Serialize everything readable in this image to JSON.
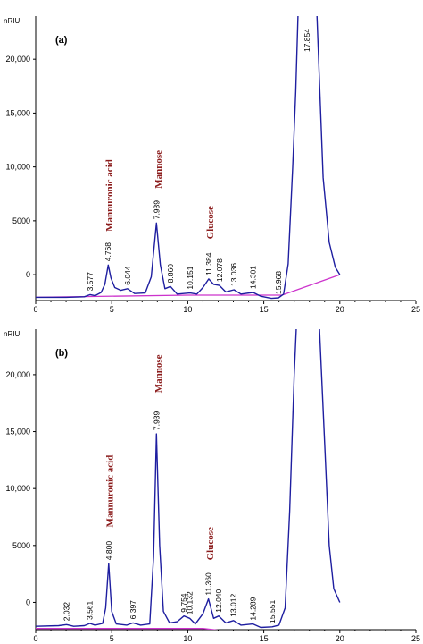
{
  "colors": {
    "signal": "#1e1ea0",
    "baseline": "#cc33cc",
    "compound": "#8b1c1c",
    "axis": "#000000"
  },
  "chart_data": [
    {
      "type": "line",
      "panel_label": "(a)",
      "ylabel": "nRIU",
      "xlim": [
        0,
        25
      ],
      "ylim": [
        -2400,
        24000
      ],
      "x_ticks": [
        "0",
        "5",
        "10",
        "15",
        "20",
        "25"
      ],
      "y_ticks": [
        {
          "value": 0,
          "label": "0"
        },
        {
          "value": 5000,
          "label": "5000"
        },
        {
          "value": 10000,
          "label": "10,000"
        },
        {
          "value": 15000,
          "label": "15,000"
        },
        {
          "value": 20000,
          "label": "20,000"
        }
      ],
      "series": [
        {
          "values": [
            [
              0,
              -2100
            ],
            [
              2,
              -2100
            ],
            [
              3.2,
              -2050
            ],
            [
              3.58,
              -1850
            ],
            [
              3.9,
              -1950
            ],
            [
              4.3,
              -1650
            ],
            [
              4.55,
              -900
            ],
            [
              4.77,
              900
            ],
            [
              4.95,
              -300
            ],
            [
              5.2,
              -1200
            ],
            [
              5.6,
              -1450
            ],
            [
              6.04,
              -1300
            ],
            [
              6.5,
              -1750
            ],
            [
              7.2,
              -1700
            ],
            [
              7.6,
              -200
            ],
            [
              7.94,
              4800
            ],
            [
              8.2,
              900
            ],
            [
              8.5,
              -1300
            ],
            [
              8.86,
              -1100
            ],
            [
              9.3,
              -1800
            ],
            [
              10.15,
              -1700
            ],
            [
              10.6,
              -1800
            ],
            [
              11.0,
              -1200
            ],
            [
              11.38,
              -400
            ],
            [
              11.7,
              -900
            ],
            [
              12.08,
              -1000
            ],
            [
              12.5,
              -1600
            ],
            [
              13.04,
              -1400
            ],
            [
              13.5,
              -1800
            ],
            [
              14.3,
              -1650
            ],
            [
              14.8,
              -2000
            ],
            [
              15.5,
              -2200
            ],
            [
              15.97,
              -2150
            ],
            [
              16.3,
              -1800
            ],
            [
              16.6,
              1000
            ],
            [
              16.9,
              10000
            ],
            [
              17.1,
              17000
            ],
            [
              17.25,
              24000
            ],
            [
              17.85,
              26000
            ],
            [
              18.5,
              24000
            ],
            [
              18.9,
              9000
            ],
            [
              19.3,
              3000
            ],
            [
              19.7,
              700
            ],
            [
              20,
              0
            ]
          ]
        }
      ],
      "baseline": [
        [
          0,
          -2100
        ],
        [
          10,
          -1900
        ],
        [
          16.2,
          -1900
        ],
        [
          20,
          0
        ]
      ],
      "peak_labels": [
        {
          "x": 3.577,
          "y": -1850,
          "label": "3.577"
        },
        {
          "x": 4.768,
          "y": 900,
          "label": "4.768"
        },
        {
          "x": 6.044,
          "y": -1300,
          "label": "6.044"
        },
        {
          "x": 7.939,
          "y": 4800,
          "label": "7.939"
        },
        {
          "x": 8.86,
          "y": -1100,
          "label": "8.860"
        },
        {
          "x": 10.151,
          "y": -1700,
          "label": "10.151"
        },
        {
          "x": 11.384,
          "y": -400,
          "label": "11.384"
        },
        {
          "x": 12.078,
          "y": -1000,
          "label": "12.078"
        },
        {
          "x": 13.036,
          "y": -1400,
          "label": "13.036"
        },
        {
          "x": 14.301,
          "y": -1650,
          "label": "14.301"
        },
        {
          "x": 15.968,
          "y": -2150,
          "label": "15.968"
        },
        {
          "x": 17.854,
          "y": 24000,
          "label": "17.854"
        }
      ],
      "compound_labels": [
        {
          "x": 4.8,
          "y": 4000,
          "label": "Mannuronic acid"
        },
        {
          "x": 8.05,
          "y": 8000,
          "label": "Mannose"
        },
        {
          "x": 11.45,
          "y": 3300,
          "label": "Glucose"
        }
      ]
    },
    {
      "type": "line",
      "panel_label": "(b)",
      "ylabel": "nRIU",
      "xlim": [
        0,
        25
      ],
      "ylim": [
        -2400,
        24000
      ],
      "x_ticks": [
        "0",
        "5",
        "10",
        "15",
        "20",
        "25"
      ],
      "y_ticks": [
        {
          "value": 0,
          "label": "0"
        },
        {
          "value": 5000,
          "label": "5000"
        },
        {
          "value": 10000,
          "label": "10,000"
        },
        {
          "value": 15000,
          "label": "15,000"
        },
        {
          "value": 20000,
          "label": "20,000"
        }
      ],
      "series": [
        {
          "values": [
            [
              0,
              -2100
            ],
            [
              1.5,
              -2050
            ],
            [
              2.03,
              -1950
            ],
            [
              2.5,
              -2100
            ],
            [
              3.2,
              -2050
            ],
            [
              3.56,
              -1850
            ],
            [
              3.9,
              -2000
            ],
            [
              4.4,
              -1850
            ],
            [
              4.6,
              -500
            ],
            [
              4.8,
              3400
            ],
            [
              5.0,
              -800
            ],
            [
              5.3,
              -1900
            ],
            [
              6.0,
              -2000
            ],
            [
              6.4,
              -1800
            ],
            [
              6.9,
              -2000
            ],
            [
              7.5,
              -1900
            ],
            [
              7.75,
              4000
            ],
            [
              7.94,
              14800
            ],
            [
              8.15,
              5000
            ],
            [
              8.4,
              -800
            ],
            [
              8.8,
              -1800
            ],
            [
              9.3,
              -1700
            ],
            [
              9.75,
              -1200
            ],
            [
              10.13,
              -1400
            ],
            [
              10.5,
              -1900
            ],
            [
              11.0,
              -1000
            ],
            [
              11.36,
              300
            ],
            [
              11.7,
              -1400
            ],
            [
              12.04,
              -1200
            ],
            [
              12.5,
              -1800
            ],
            [
              13.01,
              -1600
            ],
            [
              13.5,
              -2000
            ],
            [
              14.29,
              -1900
            ],
            [
              14.8,
              -2200
            ],
            [
              15.55,
              -2150
            ],
            [
              16.0,
              -2000
            ],
            [
              16.4,
              -500
            ],
            [
              16.7,
              8000
            ],
            [
              17.0,
              20000
            ],
            [
              17.2,
              26000
            ],
            [
              18.0,
              27000
            ],
            [
              18.6,
              26000
            ],
            [
              19.0,
              14000
            ],
            [
              19.3,
              5000
            ],
            [
              19.6,
              1200
            ],
            [
              20,
              0
            ]
          ]
        }
      ],
      "baseline": [
        [
          0,
          -2300
        ],
        [
          5,
          -2300
        ],
        [
          11,
          -2300
        ],
        [
          13,
          -2600
        ],
        [
          16,
          -2700
        ]
      ],
      "peak_labels": [
        {
          "x": 2.032,
          "y": -1950,
          "label": "2.032"
        },
        {
          "x": 3.561,
          "y": -1850,
          "label": "3.561"
        },
        {
          "x": 4.8,
          "y": 3400,
          "label": "4.800"
        },
        {
          "x": 6.397,
          "y": -1800,
          "label": "6.397"
        },
        {
          "x": 7.939,
          "y": 14800,
          "label": "7.939"
        },
        {
          "x": 9.754,
          "y": -1200,
          "label": "9.754"
        },
        {
          "x": 10.132,
          "y": -1400,
          "label": "10.132"
        },
        {
          "x": 11.36,
          "y": 300,
          "label": "11.360"
        },
        {
          "x": 12.04,
          "y": -1200,
          "label": "12.040"
        },
        {
          "x": 13.012,
          "y": -1600,
          "label": "13.012"
        },
        {
          "x": 14.289,
          "y": -1900,
          "label": "14.289"
        },
        {
          "x": 15.551,
          "y": -2150,
          "label": "15.551"
        }
      ],
      "compound_labels": [
        {
          "x": 4.85,
          "y": 6600,
          "label": "Mannuronic acid"
        },
        {
          "x": 8.05,
          "y": 18400,
          "label": "Mannose"
        },
        {
          "x": 11.45,
          "y": 3700,
          "label": "Glucose"
        }
      ]
    }
  ]
}
